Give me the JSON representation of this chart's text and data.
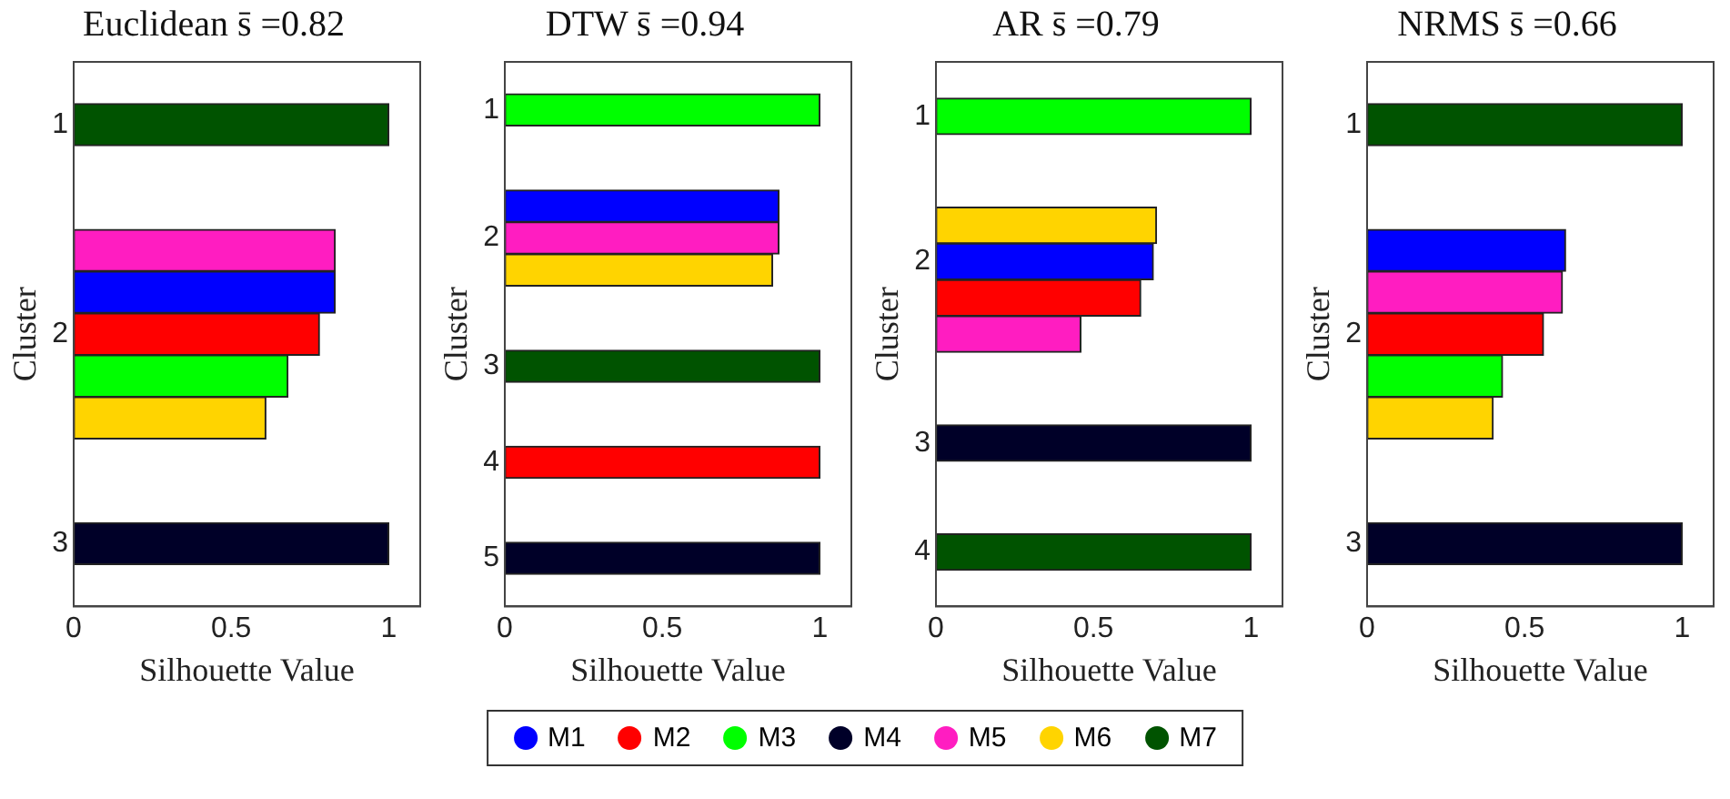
{
  "chart_data": [
    {
      "type": "bar",
      "orientation": "horizontal",
      "stacked": true,
      "title": "Euclidean s̄ =0.82",
      "xlabel": "Silhouette Value",
      "ylabel": "Cluster",
      "xlim": [
        0,
        1.1
      ],
      "xticks": [
        0,
        0.5,
        1
      ],
      "grid": false,
      "legend": "bottom",
      "categories": [
        null,
        "1",
        null,
        null,
        null,
        null,
        "2",
        null,
        null,
        null,
        null,
        "3",
        null
      ],
      "series": [
        {
          "name": "M1",
          "color": "#0000ff",
          "values": [
            null,
            null,
            null,
            null,
            null,
            0.83,
            null,
            null,
            null,
            null,
            null,
            null,
            null
          ]
        },
        {
          "name": "M2",
          "color": "#ff0000",
          "values": [
            null,
            null,
            null,
            null,
            null,
            null,
            0.78,
            null,
            null,
            null,
            null,
            null,
            null
          ]
        },
        {
          "name": "M3",
          "color": "#00ff00",
          "values": [
            null,
            null,
            null,
            null,
            null,
            null,
            null,
            0.68,
            null,
            null,
            null,
            null,
            null
          ]
        },
        {
          "name": "M4",
          "color": "#000028",
          "values": [
            null,
            null,
            null,
            null,
            null,
            null,
            null,
            null,
            null,
            null,
            null,
            1,
            null
          ]
        },
        {
          "name": "M5",
          "color": "#ff1dc1",
          "values": [
            null,
            null,
            null,
            null,
            0.83,
            null,
            null,
            null,
            null,
            null,
            null,
            null,
            null
          ]
        },
        {
          "name": "M6",
          "color": "#ffd400",
          "values": [
            null,
            null,
            null,
            null,
            null,
            null,
            null,
            null,
            0.61,
            null,
            null,
            null,
            null
          ]
        },
        {
          "name": "M7",
          "color": "#005300",
          "values": [
            null,
            1,
            null,
            null,
            null,
            null,
            null,
            null,
            null,
            null,
            null,
            null,
            null
          ]
        }
      ]
    },
    {
      "type": "bar",
      "orientation": "horizontal",
      "stacked": true,
      "title": "DTW s̄ =0.94",
      "xlabel": "Silhouette Value",
      "ylabel": "Cluster",
      "xlim": [
        0,
        1.1
      ],
      "xticks": [
        0,
        0.5,
        1
      ],
      "grid": false,
      "categories": [
        null,
        "1",
        null,
        null,
        null,
        "2",
        null,
        null,
        null,
        "3",
        null,
        null,
        "4",
        null,
        null,
        "5",
        null
      ],
      "series": [
        {
          "color": "#0000ff",
          "values": [
            null,
            null,
            null,
            null,
            0.87,
            null,
            null,
            null,
            null,
            null,
            null,
            null,
            null,
            null,
            null,
            null,
            null
          ]
        },
        {
          "color": "#ff0000",
          "values": [
            null,
            null,
            null,
            null,
            null,
            null,
            null,
            null,
            null,
            null,
            null,
            null,
            1,
            null,
            null,
            null,
            null
          ]
        },
        {
          "color": "#00ff00",
          "values": [
            null,
            1,
            null,
            null,
            null,
            null,
            null,
            null,
            null,
            null,
            null,
            null,
            null,
            null,
            null,
            null,
            null
          ]
        },
        {
          "color": "#000028",
          "values": [
            null,
            null,
            null,
            null,
            null,
            null,
            null,
            null,
            null,
            null,
            null,
            null,
            null,
            null,
            null,
            1,
            null
          ]
        },
        {
          "color": "#ff1dc1",
          "values": [
            null,
            null,
            null,
            null,
            null,
            0.87,
            null,
            null,
            null,
            null,
            null,
            null,
            null,
            null,
            null,
            null,
            null
          ]
        },
        {
          "color": "#ffd400",
          "values": [
            null,
            null,
            null,
            null,
            null,
            null,
            0.85,
            null,
            null,
            null,
            null,
            null,
            null,
            null,
            null,
            null,
            null
          ]
        },
        {
          "color": "#005300",
          "values": [
            null,
            null,
            null,
            null,
            null,
            null,
            null,
            null,
            null,
            1,
            null,
            null,
            null,
            null,
            null,
            null,
            null
          ]
        }
      ]
    },
    {
      "type": "bar",
      "orientation": "horizontal",
      "stacked": true,
      "title": "AR s̄ =0.79",
      "xlabel": "Silhouette Value",
      "ylabel": "Cluster",
      "xlim": [
        0,
        1.1
      ],
      "xticks": [
        0,
        0.5,
        1
      ],
      "grid": false,
      "categories": [
        null,
        "1",
        null,
        null,
        null,
        "2",
        null,
        null,
        null,
        null,
        "3",
        null,
        null,
        "4",
        null
      ],
      "series": [
        {
          "color": "#0000ff",
          "values": [
            null,
            null,
            null,
            null,
            null,
            0.69,
            null,
            null,
            null,
            null,
            null,
            null,
            null,
            null,
            null
          ]
        },
        {
          "color": "#ff0000",
          "values": [
            null,
            null,
            null,
            null,
            null,
            null,
            0.65,
            null,
            null,
            null,
            null,
            null,
            null,
            null,
            null
          ]
        },
        {
          "color": "#00ff00",
          "values": [
            null,
            1,
            null,
            null,
            null,
            null,
            null,
            null,
            null,
            null,
            null,
            null,
            null,
            null,
            null
          ]
        },
        {
          "color": "#000028",
          "values": [
            null,
            null,
            null,
            null,
            null,
            null,
            null,
            null,
            null,
            null,
            1,
            null,
            null,
            null,
            null
          ]
        },
        {
          "color": "#ff1dc1",
          "values": [
            null,
            null,
            null,
            null,
            null,
            null,
            null,
            0.46,
            null,
            null,
            null,
            null,
            null,
            null,
            null
          ]
        },
        {
          "color": "#ffd400",
          "values": [
            null,
            null,
            null,
            null,
            0.7,
            null,
            null,
            null,
            null,
            null,
            null,
            null,
            null,
            null,
            null
          ]
        },
        {
          "color": "#005300",
          "values": [
            null,
            null,
            null,
            null,
            null,
            null,
            null,
            null,
            null,
            null,
            null,
            null,
            null,
            1,
            null
          ]
        }
      ]
    },
    {
      "type": "bar",
      "orientation": "horizontal",
      "stacked": true,
      "title": "NRMS s̄ =0.66",
      "xlabel": "Silhouette Value",
      "ylabel": "Cluster",
      "xlim": [
        0,
        1.1
      ],
      "xticks": [
        0,
        0.5,
        1
      ],
      "grid": false,
      "categories": [
        null,
        "1",
        null,
        null,
        null,
        null,
        "2",
        null,
        null,
        null,
        null,
        "3",
        null
      ],
      "series": [
        {
          "color": "#0000ff",
          "values": [
            null,
            null,
            null,
            null,
            0.63,
            null,
            null,
            null,
            null,
            null,
            null,
            null,
            null
          ]
        },
        {
          "color": "#ff0000",
          "values": [
            null,
            null,
            null,
            null,
            null,
            null,
            0.56,
            null,
            null,
            null,
            null,
            null,
            null
          ]
        },
        {
          "color": "#00ff00",
          "values": [
            null,
            null,
            null,
            null,
            null,
            null,
            null,
            0.43,
            null,
            null,
            null,
            null,
            null
          ]
        },
        {
          "color": "#000028",
          "values": [
            null,
            null,
            null,
            null,
            null,
            null,
            null,
            null,
            null,
            null,
            null,
            1,
            null
          ]
        },
        {
          "color": "#ff1dc1",
          "values": [
            null,
            null,
            null,
            null,
            null,
            0.62,
            null,
            null,
            null,
            null,
            null,
            null,
            null
          ]
        },
        {
          "color": "#ffd400",
          "values": [
            null,
            null,
            null,
            null,
            null,
            null,
            null,
            null,
            0.4,
            null,
            null,
            null,
            null
          ]
        },
        {
          "color": "#005300",
          "values": [
            null,
            1,
            null,
            null,
            null,
            null,
            null,
            null,
            null,
            null,
            null,
            null,
            null
          ]
        }
      ]
    }
  ]
}
